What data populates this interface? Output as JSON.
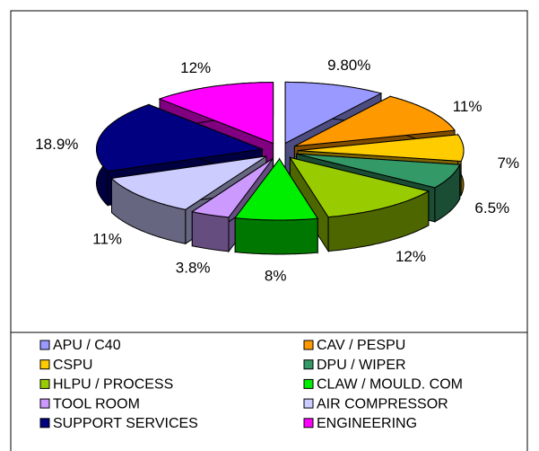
{
  "chart_data": {
    "type": "pie3d",
    "categories": [
      "APU / C40",
      "CAV / PESPU",
      "CSPU",
      "DPU / WIPER",
      "HLPU / PROCESS",
      "CLAW / MOULD. COM",
      "TOOL ROOM",
      "AIR COMPRESSOR",
      "SUPPORT SERVICES",
      "ENGINEERING"
    ],
    "values": [
      9.8,
      11,
      7,
      6.5,
      12,
      8,
      3.8,
      11,
      18.9,
      12
    ],
    "value_labels": [
      "9.80%",
      "11%",
      "7%",
      "6.5%",
      "12%",
      "8%",
      "3.8%",
      "11%",
      "18.9%",
      "12%"
    ],
    "colors": [
      "#9999ff",
      "#ff9900",
      "#ffcc00",
      "#339966",
      "#99cc00",
      "#00ee00",
      "#cc99ff",
      "#ccccff",
      "#000080",
      "#ff00ff"
    ]
  }
}
